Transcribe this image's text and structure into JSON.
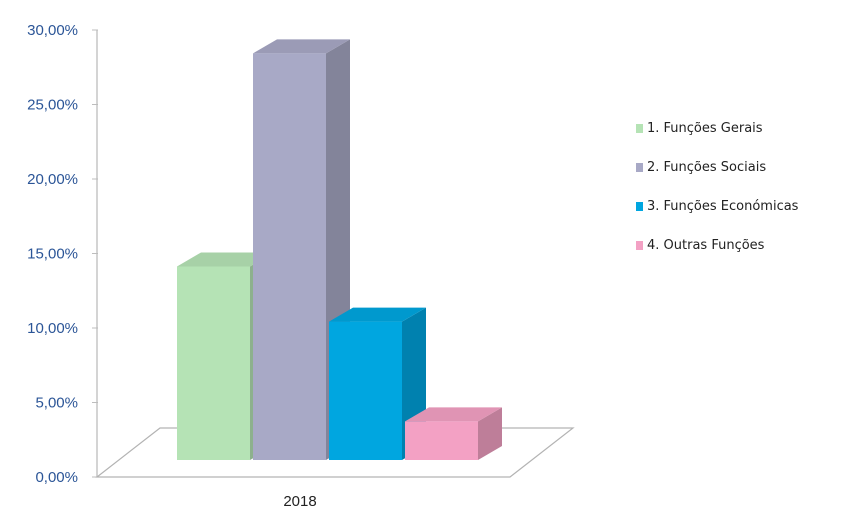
{
  "chart_data": {
    "type": "bar",
    "categories": [
      "2018"
    ],
    "series": [
      {
        "name": "1. Funções Gerais",
        "values": [
          14.6
        ],
        "color": "#b5e3b5"
      },
      {
        "name": "2. Funções Sociais",
        "values": [
          28.9
        ],
        "color": "#a8a9c6"
      },
      {
        "name": "3. Funções Económicas",
        "values": [
          10.9
        ],
        "color": "#00a6e0"
      },
      {
        "name": "4. Outras Funções",
        "values": [
          4.2
        ],
        "color": "#f3a1c4"
      }
    ],
    "ylim": [
      0,
      30
    ],
    "yticks": [
      "0,00%",
      "5,00%",
      "10,00%",
      "15,00%",
      "20,00%",
      "25,00%",
      "30,00%"
    ],
    "xlabel": "",
    "ylabel": "",
    "title": "",
    "legend_position": "right",
    "style": "3d-column"
  }
}
